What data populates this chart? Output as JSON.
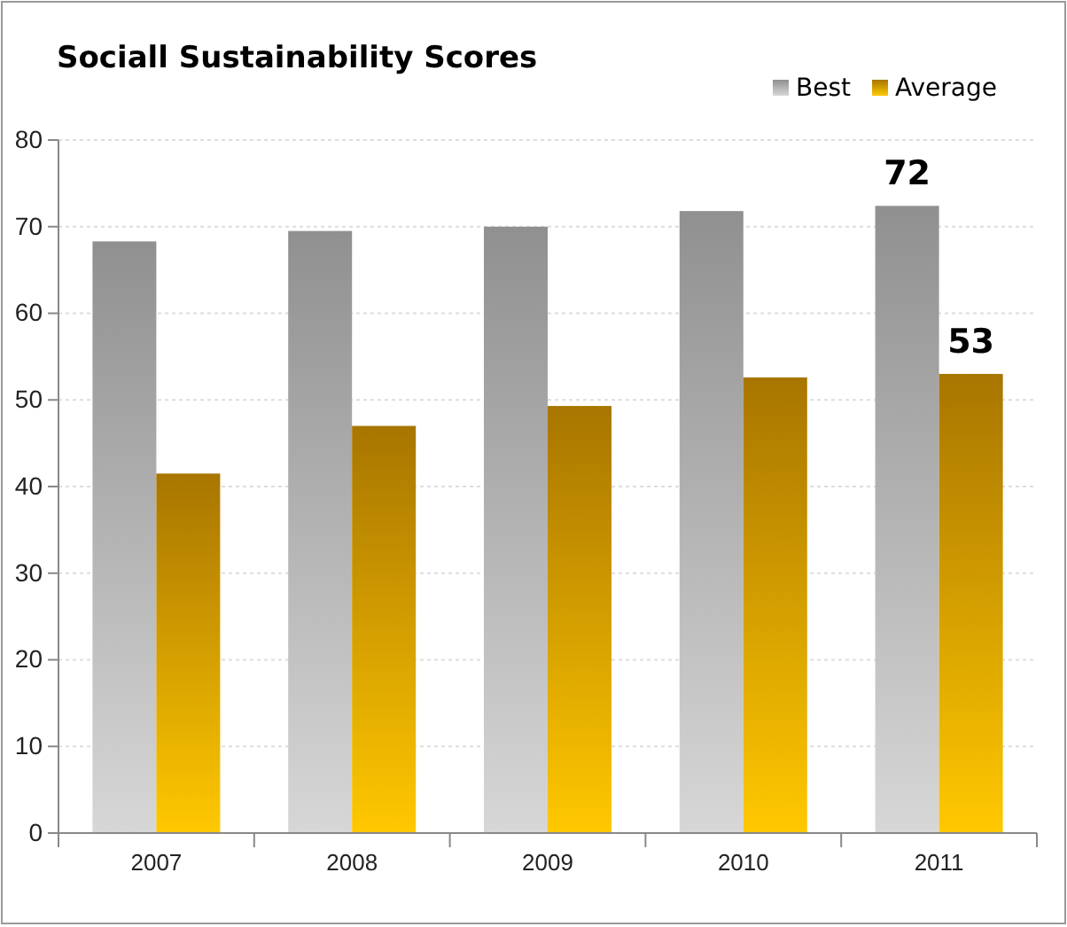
{
  "chart_data": {
    "type": "bar",
    "title": "Sociall Sustainability Scores",
    "categories": [
      "2007",
      "2008",
      "2009",
      "2010",
      "2011"
    ],
    "series": [
      {
        "name": "Best",
        "color": "#a6a6a6",
        "values": [
          68.3,
          69.5,
          70,
          71.8,
          72.4
        ],
        "value_labels": [
          null,
          null,
          null,
          null,
          "72"
        ]
      },
      {
        "name": "Average",
        "color": "#c89400",
        "values": [
          41.5,
          47,
          49.3,
          52.6,
          53
        ],
        "value_labels": [
          null,
          null,
          null,
          null,
          "53"
        ]
      }
    ],
    "ylim": [
      0,
      80
    ],
    "yticks": [
      0,
      10,
      20,
      30,
      40,
      50,
      60,
      70,
      80
    ],
    "grid": "y",
    "legend": "top right"
  }
}
